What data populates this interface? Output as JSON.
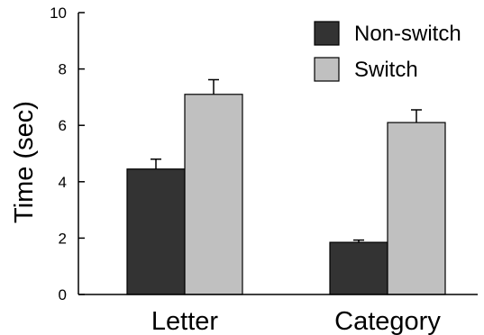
{
  "chart_data": {
    "type": "bar",
    "ylabel": "Time (sec)",
    "xlabel": "",
    "ylim": [
      0,
      10
    ],
    "yticks": [
      "0",
      "2",
      "4",
      "6",
      "8",
      "10"
    ],
    "categories": [
      "Letter",
      "Category"
    ],
    "series": [
      {
        "name": "Non-switch",
        "color": "#333333",
        "values": [
          4.45,
          1.85
        ],
        "errors": [
          0.35,
          0.08
        ]
      },
      {
        "name": "Switch",
        "color": "#c0c0c0",
        "values": [
          7.1,
          6.1
        ],
        "errors": [
          0.52,
          0.45
        ]
      }
    ],
    "legend_position": "top-right",
    "grid": false
  }
}
